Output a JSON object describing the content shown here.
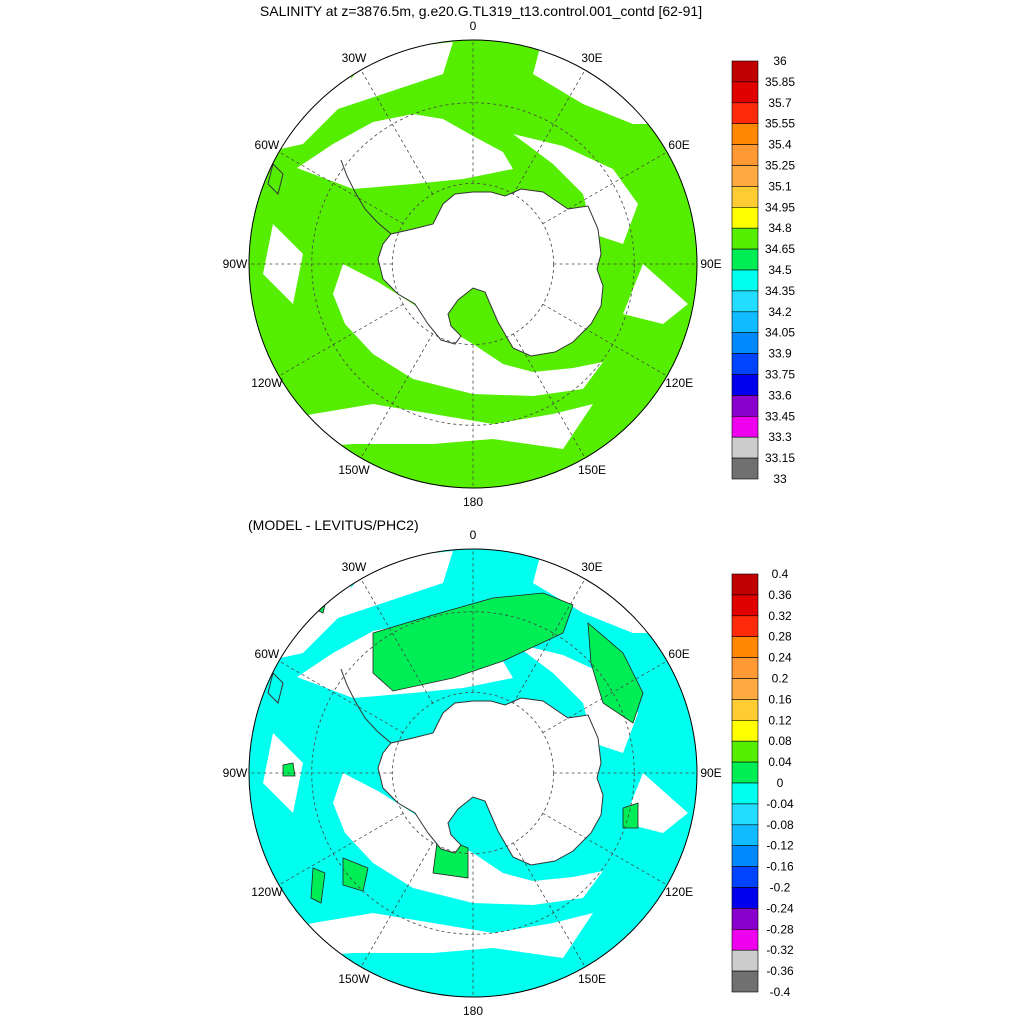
{
  "panels": [
    {
      "id": "salinity",
      "title": "SALINITY at z=3876.5m, g.e20.G.TL319_t13.control.001_contd [62-91]",
      "lon_labels": [
        "0",
        "30E",
        "60E",
        "90E",
        "120E",
        "150E",
        "180",
        "150W",
        "120W",
        "90W",
        "60W",
        "30W"
      ],
      "colorbar": {
        "labels": [
          "36",
          "35.85",
          "35.7",
          "35.55",
          "35.4",
          "35.25",
          "35.1",
          "34.95",
          "34.8",
          "34.65",
          "34.5",
          "34.35",
          "34.2",
          "34.05",
          "33.9",
          "33.75",
          "33.6",
          "33.45",
          "33.3",
          "33.15",
          "33"
        ],
        "colors": [
          "#c00000",
          "#e00000",
          "#ff2a0a",
          "#ff8800",
          "#ff9933",
          "#ffaa40",
          "#ffcc33",
          "#ffff00",
          "#55ee00",
          "#00ee55",
          "#00ffee",
          "#22ddff",
          "#11bbff",
          "#0088ff",
          "#0044ff",
          "#0000ee",
          "#8800cc",
          "#ee00ee",
          "#cccccc",
          "#707070"
        ]
      },
      "field_color": "#55ee00"
    },
    {
      "id": "difference",
      "title": "(MODEL - LEVITUS/PHC2)",
      "lon_labels": [
        "0",
        "30E",
        "60E",
        "90E",
        "120E",
        "150E",
        "180",
        "150W",
        "120W",
        "90W",
        "60W",
        "30W"
      ],
      "colorbar": {
        "labels": [
          "0.4",
          "0.36",
          "0.32",
          "0.28",
          "0.24",
          "0.2",
          "0.16",
          "0.12",
          "0.08",
          "0.04",
          "0",
          "-0.04",
          "-0.08",
          "-0.12",
          "-0.16",
          "-0.2",
          "-0.24",
          "-0.28",
          "-0.32",
          "-0.36",
          "-0.4"
        ],
        "colors": [
          "#c00000",
          "#e00000",
          "#ff2a0a",
          "#ff8800",
          "#ff9933",
          "#ffaa40",
          "#ffcc33",
          "#ffff00",
          "#55ee00",
          "#00ee55",
          "#00ffee",
          "#22ddff",
          "#11bbff",
          "#0088ff",
          "#0044ff",
          "#0000ee",
          "#8800cc",
          "#ee00ee",
          "#cccccc",
          "#707070"
        ]
      },
      "field_color": "#00ffee",
      "positive_color": "#00ee55"
    }
  ]
}
